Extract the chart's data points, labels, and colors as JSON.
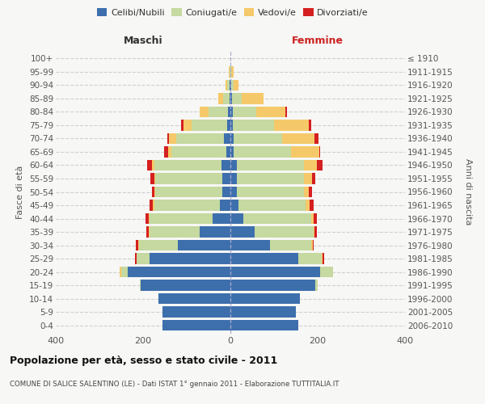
{
  "age_groups": [
    "0-4",
    "5-9",
    "10-14",
    "15-19",
    "20-24",
    "25-29",
    "30-34",
    "35-39",
    "40-44",
    "45-49",
    "50-54",
    "55-59",
    "60-64",
    "65-69",
    "70-74",
    "75-79",
    "80-84",
    "85-89",
    "90-94",
    "95-99",
    "100+"
  ],
  "birth_years": [
    "2006-2010",
    "2001-2005",
    "1996-2000",
    "1991-1995",
    "1986-1990",
    "1981-1985",
    "1976-1980",
    "1971-1975",
    "1966-1970",
    "1961-1965",
    "1956-1960",
    "1951-1955",
    "1946-1950",
    "1941-1945",
    "1936-1940",
    "1931-1935",
    "1926-1930",
    "1921-1925",
    "1916-1920",
    "1911-1915",
    "≤ 1910"
  ],
  "maschi": {
    "celibi": [
      155,
      155,
      165,
      205,
      235,
      185,
      120,
      70,
      40,
      25,
      18,
      18,
      20,
      10,
      15,
      8,
      5,
      2,
      2,
      0,
      0
    ],
    "coniugati": [
      0,
      0,
      0,
      2,
      15,
      30,
      90,
      115,
      145,
      150,
      155,
      155,
      155,
      125,
      110,
      80,
      45,
      15,
      5,
      2,
      0
    ],
    "vedovi": [
      0,
      0,
      0,
      0,
      3,
      0,
      2,
      2,
      2,
      2,
      2,
      2,
      4,
      8,
      15,
      20,
      20,
      10,
      5,
      2,
      0
    ],
    "divorziati": [
      0,
      0,
      0,
      0,
      0,
      3,
      5,
      6,
      8,
      8,
      5,
      8,
      12,
      8,
      5,
      5,
      0,
      0,
      0,
      0,
      0
    ]
  },
  "femmine": {
    "nubili": [
      155,
      150,
      160,
      195,
      205,
      155,
      90,
      55,
      30,
      18,
      14,
      14,
      14,
      8,
      8,
      5,
      5,
      3,
      2,
      0,
      0
    ],
    "coniugate": [
      0,
      0,
      0,
      5,
      30,
      55,
      95,
      135,
      155,
      155,
      155,
      155,
      155,
      130,
      110,
      95,
      55,
      22,
      6,
      2,
      0
    ],
    "vedove": [
      0,
      0,
      0,
      0,
      0,
      2,
      3,
      3,
      5,
      8,
      10,
      18,
      30,
      65,
      75,
      80,
      65,
      50,
      10,
      5,
      0
    ],
    "divorziate": [
      0,
      0,
      0,
      0,
      0,
      2,
      3,
      5,
      8,
      10,
      8,
      8,
      12,
      2,
      8,
      5,
      5,
      0,
      0,
      0,
      0
    ]
  },
  "colors": {
    "celibi_nubili": "#3d6fad",
    "coniugati": "#c5d9a0",
    "vedovi": "#f5c96a",
    "divorziati": "#d42020"
  },
  "xlim": 400,
  "title": "Popolazione per età, sesso e stato civile - 2011",
  "subtitle": "COMUNE DI SALICE SALENTINO (LE) - Dati ISTAT 1° gennaio 2011 - Elaborazione TUTTITALIA.IT",
  "ylabel_left": "Fasce di età",
  "ylabel_right": "Anni di nascita",
  "xlabel_maschi": "Maschi",
  "xlabel_femmine": "Femmine",
  "legend_labels": [
    "Celibi/Nubili",
    "Coniugati/e",
    "Vedovi/e",
    "Divorziati/e"
  ],
  "bg_color": "#f7f7f5"
}
